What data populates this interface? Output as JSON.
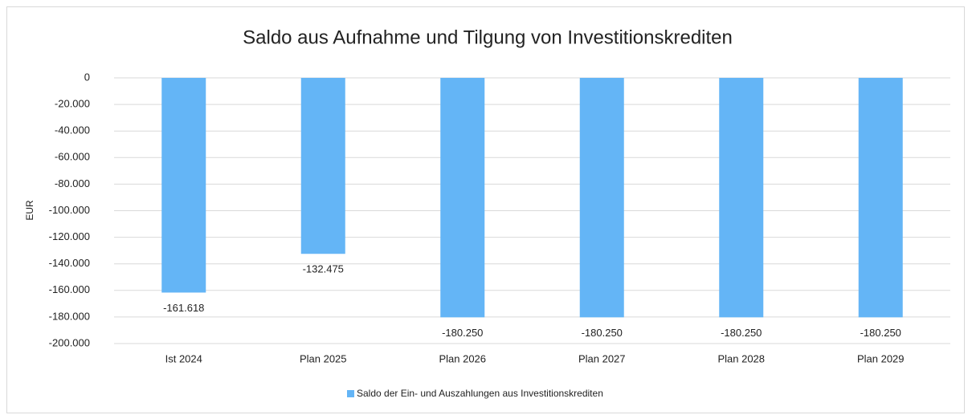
{
  "chart_data": {
    "type": "bar",
    "title": "Saldo aus Aufnahme und Tilgung von Investitionskrediten",
    "y_label": "EUR",
    "categories": [
      "Ist 2024",
      "Plan 2025",
      "Plan 2026",
      "Plan 2027",
      "Plan 2028",
      "Plan 2029"
    ],
    "series": [
      {
        "name": "Saldo der Ein- und Auszahlungen aus Investitionskrediten",
        "color": "#64b5f6",
        "values": [
          -161618,
          -132475,
          -180250,
          -180250,
          -180250,
          -180250
        ],
        "value_labels": [
          "-161.618",
          "-132.475",
          "-180.250",
          "-180.250",
          "-180.250",
          "-180.250"
        ]
      }
    ],
    "ylim": [
      -200000,
      0
    ],
    "yticks": [
      0,
      {
        "value": -20000,
        "label": "-20.000"
      },
      {
        "value": -40000,
        "label": "-40.000"
      },
      {
        "value": -60000,
        "label": "-60.000"
      },
      {
        "value": -80000,
        "label": "-80.000"
      },
      {
        "value": -100000,
        "label": "-100.000"
      },
      {
        "value": -120000,
        "label": "-120.000"
      },
      {
        "value": -140000,
        "label": "-140.000"
      },
      {
        "value": -160000,
        "label": "-160.000"
      },
      {
        "value": -180000,
        "label": "-180.000"
      },
      {
        "value": -200000,
        "label": "-200.000"
      }
    ],
    "grid": true,
    "legend": "bottom"
  }
}
